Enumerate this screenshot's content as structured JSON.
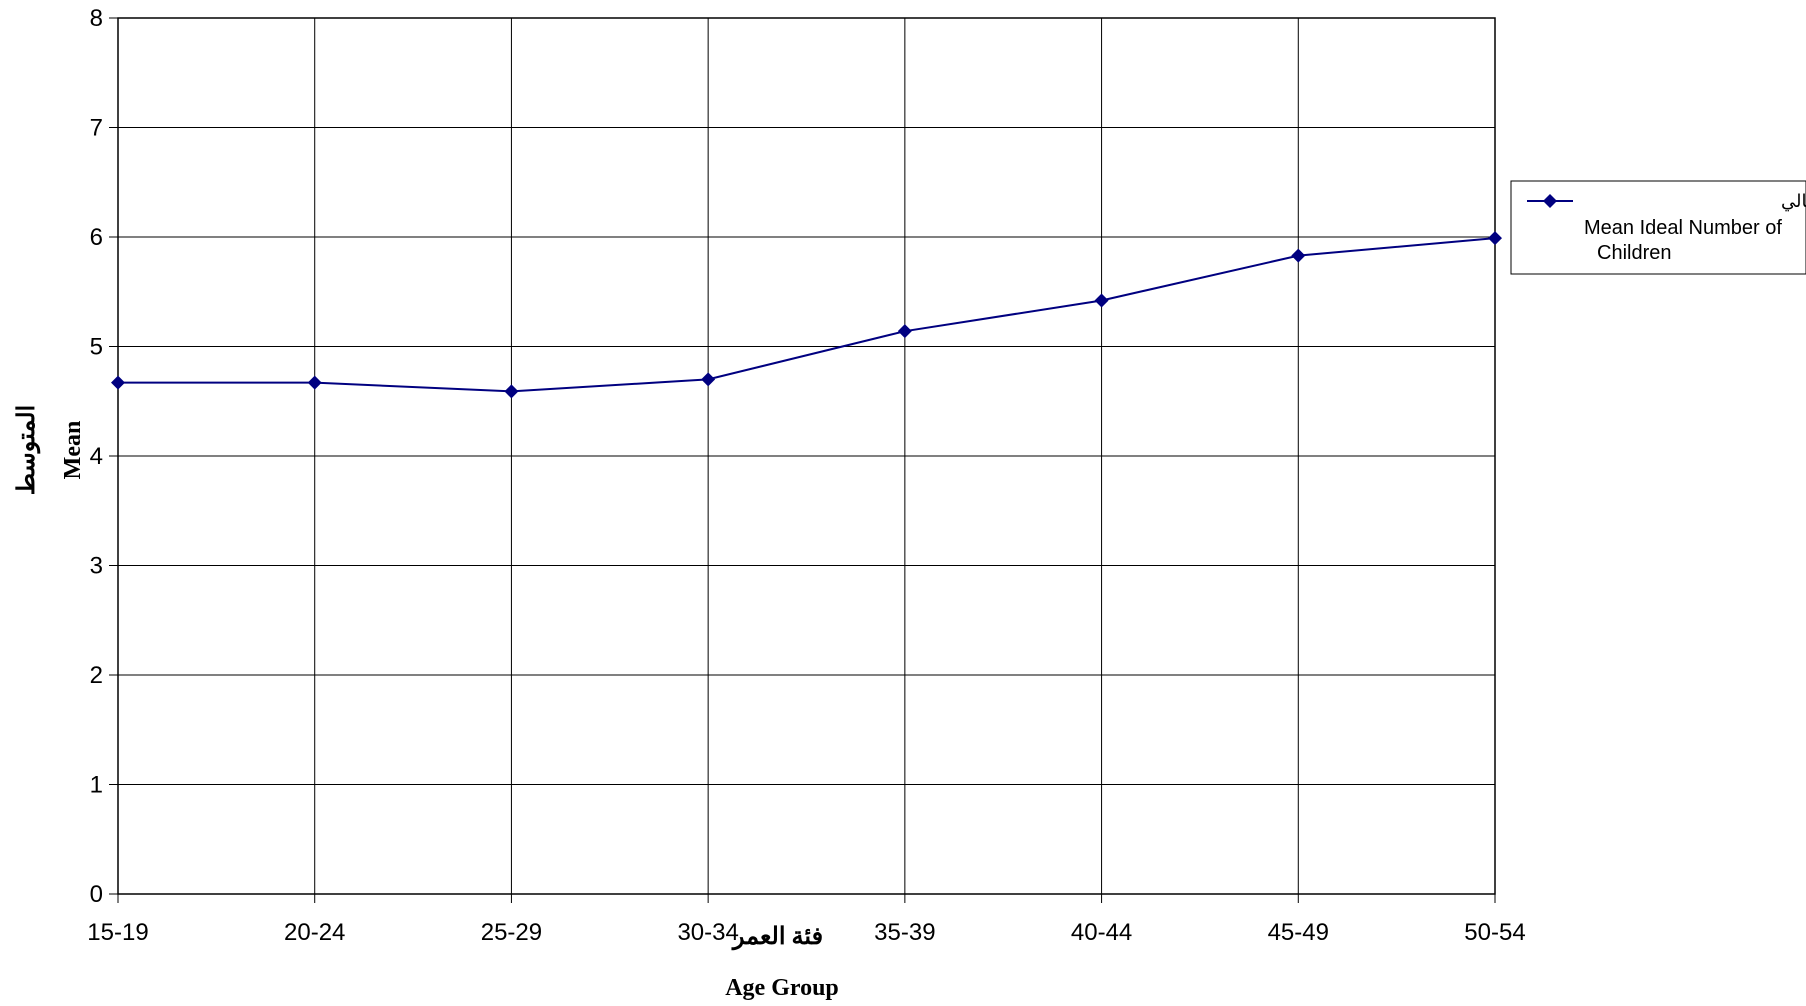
{
  "chart_data": {
    "type": "line",
    "categories": [
      "15-19",
      "20-24",
      "25-29",
      "30-34",
      "35-39",
      "40-44",
      "45-49",
      "50-54"
    ],
    "series": [
      {
        "name": "متوسط عدد الأطفال المثالي Mean Ideal Number of Children",
        "values": [
          4.67,
          4.67,
          4.59,
          4.7,
          5.14,
          5.42,
          5.83,
          5.99
        ]
      }
    ],
    "ylim": [
      0,
      8
    ],
    "yticks": [
      "0",
      "1",
      "2",
      "3",
      "4",
      "5",
      "6",
      "7",
      "8"
    ],
    "xlabel_ar": "فئة العمر",
    "xlabel_en": "Age Group",
    "ylabel_ar": "المتوسط",
    "ylabel_en": "Mean",
    "legend": {
      "label_ar": "متوسط عدد الأطفال المثالي",
      "label_en_line1": "Mean Ideal Number of",
      "label_en_line2": "Children",
      "position": "right"
    },
    "grid": true,
    "colors": {
      "series": "#000080",
      "grid": "#000000"
    }
  }
}
